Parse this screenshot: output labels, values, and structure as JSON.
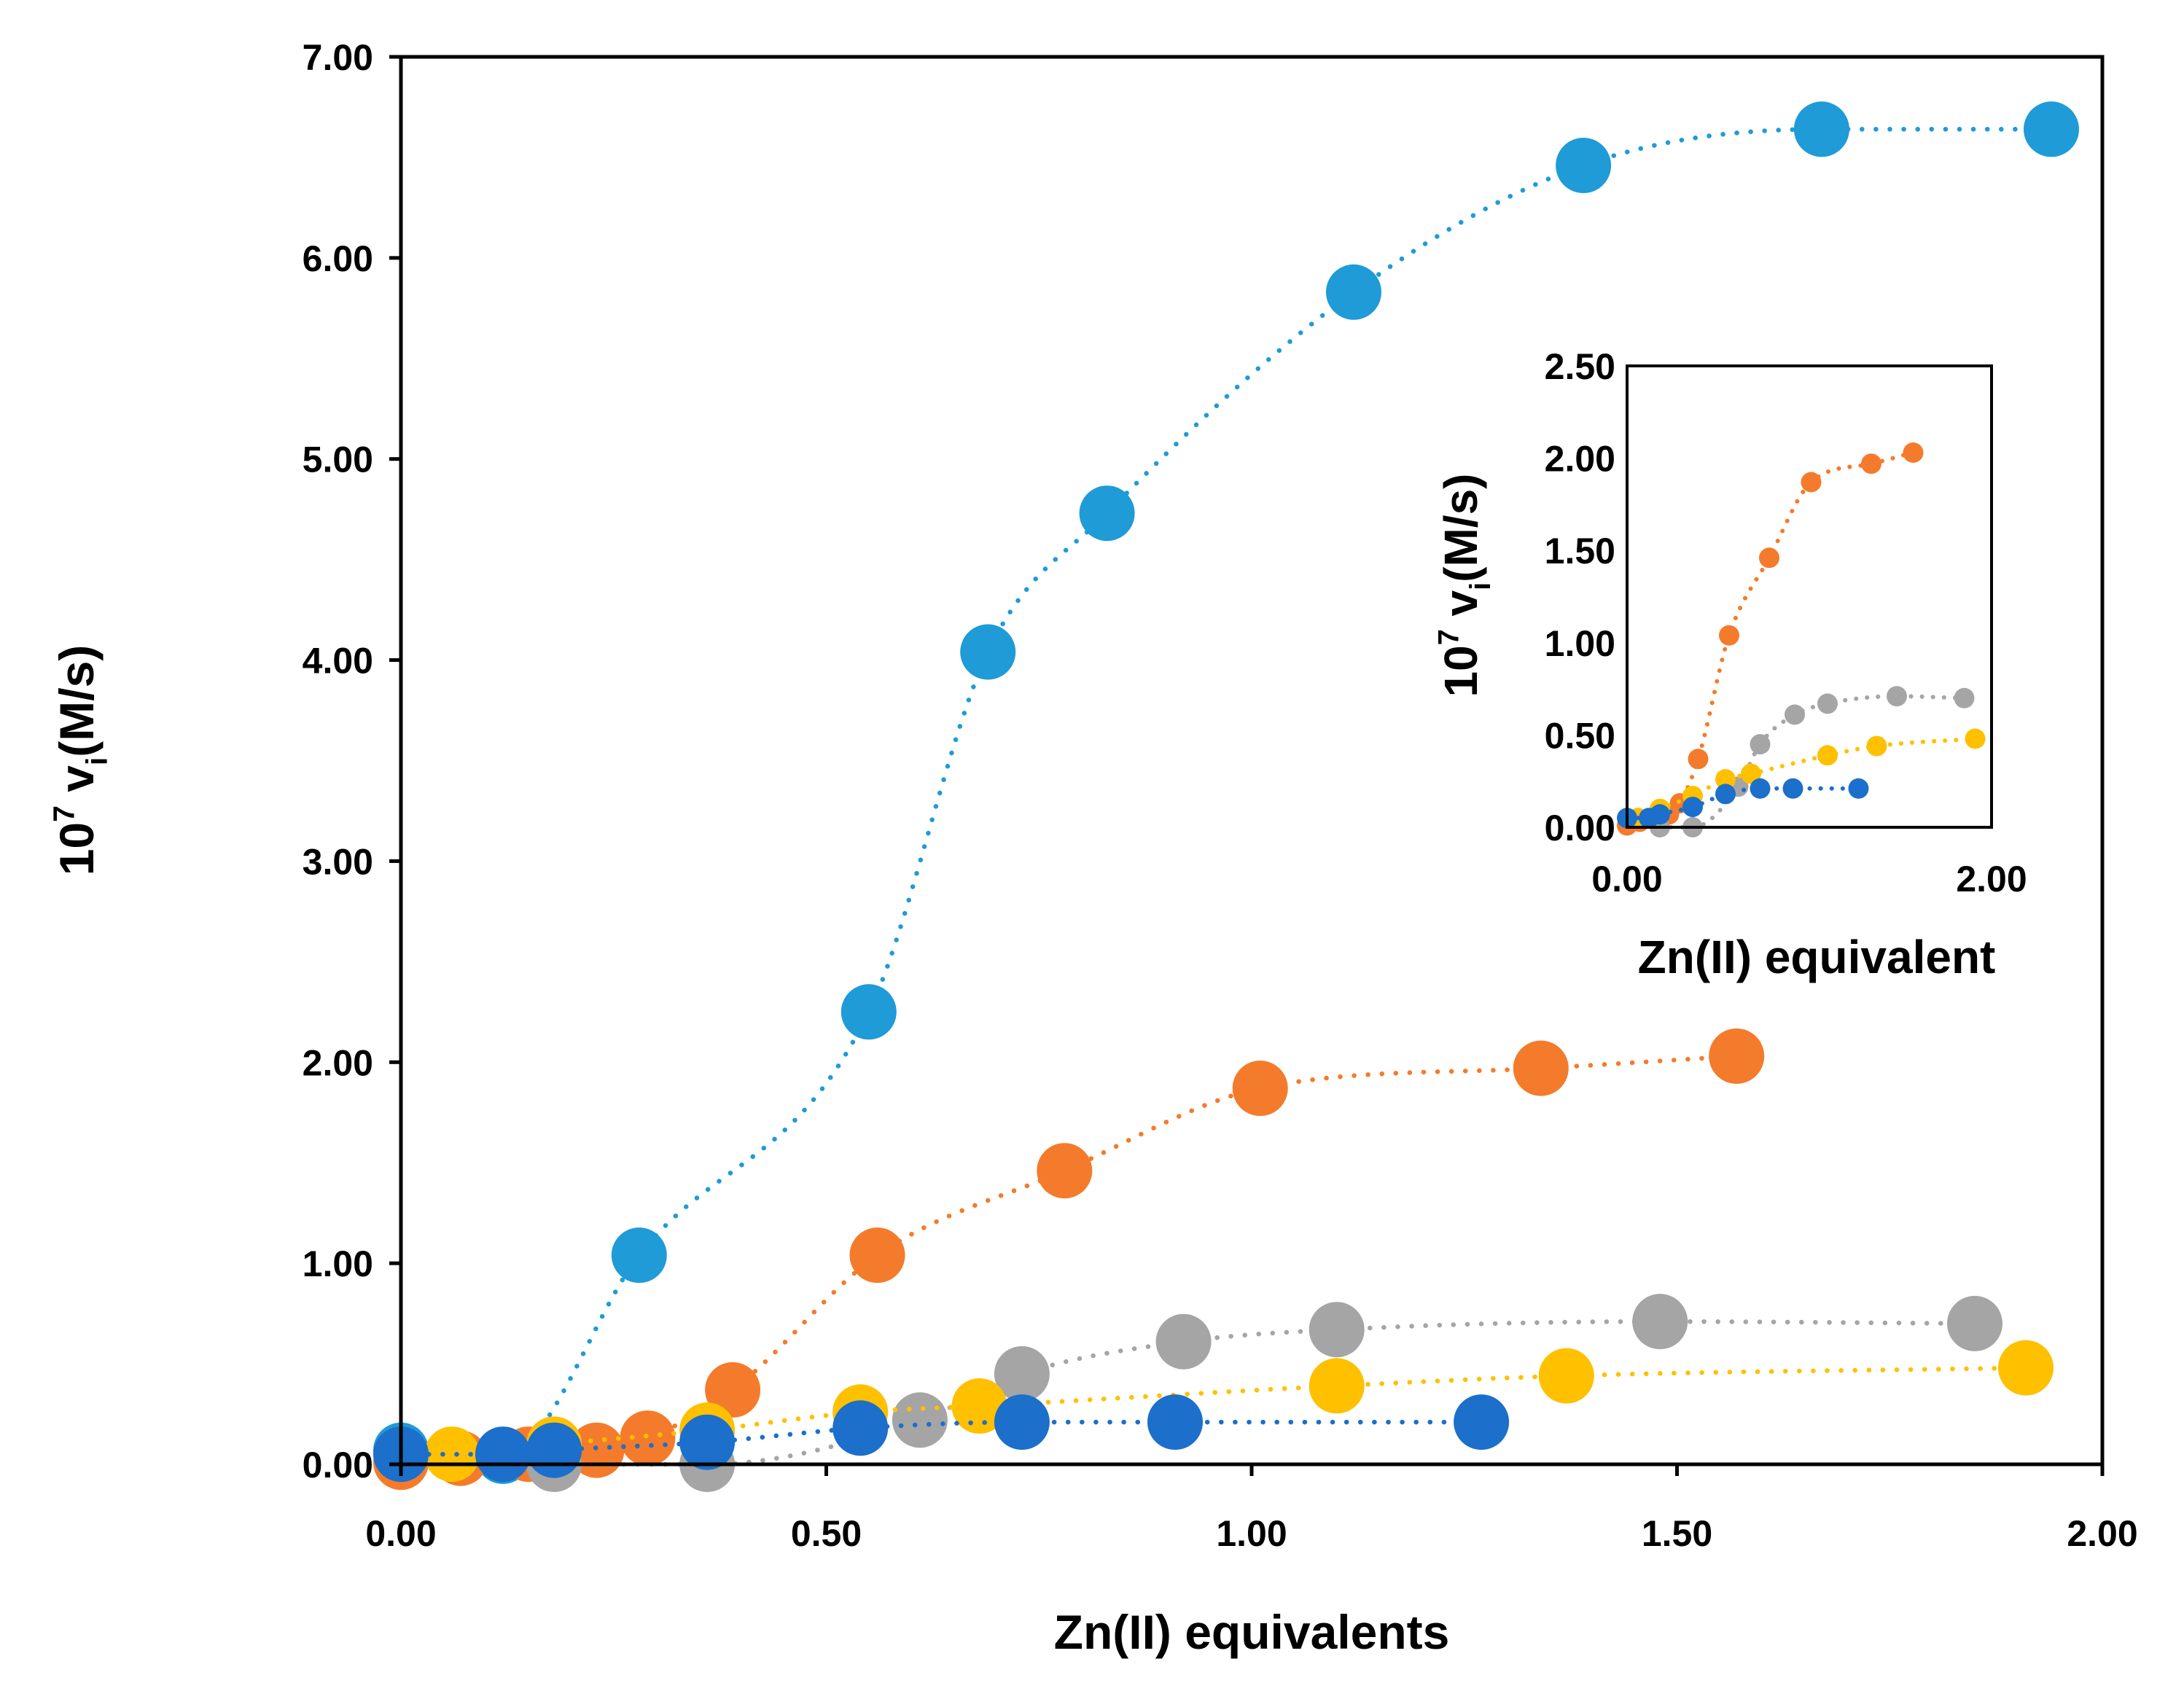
{
  "chart_data": [
    {
      "id": "main",
      "type": "scatter",
      "title": "",
      "xlabel": "Zn(II) equivalents",
      "ylabel": {
        "base": "10",
        "exp": "7",
        "var": "v",
        "sub": "i",
        "unit": "(M/s)"
      },
      "xlim": [
        0,
        2
      ],
      "ylim": [
        0,
        7
      ],
      "xticks": [
        0,
        0.5,
        1,
        1.5,
        2
      ],
      "yticks": [
        0,
        1,
        2,
        3,
        4,
        5,
        6,
        7
      ],
      "xtick_labels": [
        "0.00",
        "0.50",
        "1.00",
        "1.50",
        "2.00"
      ],
      "ytick_labels": [
        "0.00",
        "1.00",
        "2.00",
        "3.00",
        "4.00",
        "5.00",
        "6.00",
        "7.00"
      ],
      "grid": false,
      "series": [
        {
          "name": "light-blue",
          "color": "#1f9bd7",
          "x": [
            0.0,
            0.12,
            0.28,
            0.55,
            0.69,
            0.83,
            1.12,
            1.39,
            1.67,
            1.94
          ],
          "y": [
            0.07,
            0.04,
            1.04,
            2.25,
            4.04,
            4.73,
            5.83,
            6.46,
            6.64,
            6.64
          ]
        },
        {
          "name": "orange",
          "color": "#f47b2b",
          "x": [
            0.0,
            0.07,
            0.15,
            0.23,
            0.29,
            0.39,
            0.56,
            0.78,
            1.01,
            1.34,
            1.57
          ],
          "y": [
            0.01,
            0.03,
            0.05,
            0.07,
            0.13,
            0.37,
            1.04,
            1.46,
            1.87,
            1.97,
            2.03
          ]
        },
        {
          "name": "gray",
          "color": "#a5a5a5",
          "x": [
            0.18,
            0.36,
            0.61,
            0.73,
            0.92,
            1.1,
            1.48,
            1.85
          ],
          "y": [
            0.0,
            0.0,
            0.22,
            0.45,
            0.61,
            0.67,
            0.71,
            0.7
          ]
        },
        {
          "name": "yellow",
          "color": "#ffc000",
          "x": [
            0.06,
            0.18,
            0.36,
            0.54,
            0.68,
            1.1,
            1.37,
            1.91
          ],
          "y": [
            0.05,
            0.1,
            0.17,
            0.26,
            0.29,
            0.39,
            0.44,
            0.48
          ]
        },
        {
          "name": "dark-blue",
          "color": "#1c6fca",
          "x": [
            0.0,
            0.12,
            0.18,
            0.36,
            0.54,
            0.73,
            0.91,
            1.27
          ],
          "y": [
            0.05,
            0.05,
            0.07,
            0.11,
            0.18,
            0.21,
            0.21,
            0.21
          ]
        }
      ]
    },
    {
      "id": "inset",
      "type": "scatter",
      "title": "",
      "xlabel": "Zn(II) equivalent",
      "ylabel": {
        "base": "10",
        "exp": "7",
        "var": "v",
        "sub": "i",
        "unit": "(M/s)"
      },
      "xlim": [
        0,
        2
      ],
      "ylim": [
        0,
        2.5
      ],
      "xticks": [
        0,
        2
      ],
      "yticks": [
        0,
        0.5,
        1,
        1.5,
        2,
        2.5
      ],
      "xtick_labels": [
        "0.00",
        "2.00"
      ],
      "ytick_labels": [
        "0.00",
        "0.50",
        "1.00",
        "1.50",
        "2.00",
        "2.50"
      ],
      "grid": false,
      "series": [
        {
          "name": "orange",
          "color": "#f47b2b",
          "x": [
            0.0,
            0.07,
            0.15,
            0.23,
            0.29,
            0.39,
            0.56,
            0.78,
            1.01,
            1.34,
            1.57
          ],
          "y": [
            0.01,
            0.03,
            0.05,
            0.07,
            0.13,
            0.37,
            1.04,
            1.46,
            1.87,
            1.97,
            2.03
          ]
        },
        {
          "name": "gray",
          "color": "#a5a5a5",
          "x": [
            0.18,
            0.36,
            0.61,
            0.73,
            0.92,
            1.1,
            1.48,
            1.85
          ],
          "y": [
            0.0,
            0.0,
            0.22,
            0.45,
            0.61,
            0.67,
            0.71,
            0.7
          ]
        },
        {
          "name": "yellow",
          "color": "#ffc000",
          "x": [
            0.06,
            0.18,
            0.36,
            0.54,
            0.68,
            1.1,
            1.37,
            1.91
          ],
          "y": [
            0.05,
            0.1,
            0.17,
            0.26,
            0.29,
            0.39,
            0.44,
            0.48
          ]
        },
        {
          "name": "dark-blue",
          "color": "#1c6fca",
          "x": [
            0.0,
            0.12,
            0.18,
            0.36,
            0.54,
            0.73,
            0.91,
            1.27
          ],
          "y": [
            0.05,
            0.05,
            0.07,
            0.11,
            0.18,
            0.21,
            0.21,
            0.21
          ]
        }
      ]
    }
  ]
}
